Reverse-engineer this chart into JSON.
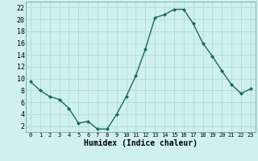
{
  "x": [
    0,
    1,
    2,
    3,
    4,
    5,
    6,
    7,
    8,
    9,
    10,
    11,
    12,
    13,
    14,
    15,
    16,
    17,
    18,
    19,
    20,
    21,
    22,
    23
  ],
  "y": [
    9.5,
    8.0,
    7.0,
    6.5,
    5.0,
    2.5,
    2.8,
    1.5,
    1.5,
    4.0,
    7.0,
    10.5,
    15.0,
    20.3,
    20.8,
    21.7,
    21.7,
    19.3,
    16.0,
    13.8,
    11.3,
    9.0,
    7.5,
    8.3
  ],
  "line_color": "#1a6b5a",
  "marker": "D",
  "markersize": 2.0,
  "linewidth": 1.0,
  "bg_color": "#cff0eb",
  "grid_color": "#aeddd7",
  "xlabel": "Humidex (Indice chaleur)",
  "xlabel_fontsize": 7,
  "tick_fontsize": 6,
  "ylim": [
    1,
    23
  ],
  "xlim": [
    -0.5,
    23.5
  ],
  "yticks": [
    2,
    4,
    6,
    8,
    10,
    12,
    14,
    16,
    18,
    20,
    22
  ],
  "xticks": [
    0,
    1,
    2,
    3,
    4,
    5,
    6,
    7,
    8,
    9,
    10,
    11,
    12,
    13,
    14,
    15,
    16,
    17,
    18,
    19,
    20,
    21,
    22,
    23
  ]
}
